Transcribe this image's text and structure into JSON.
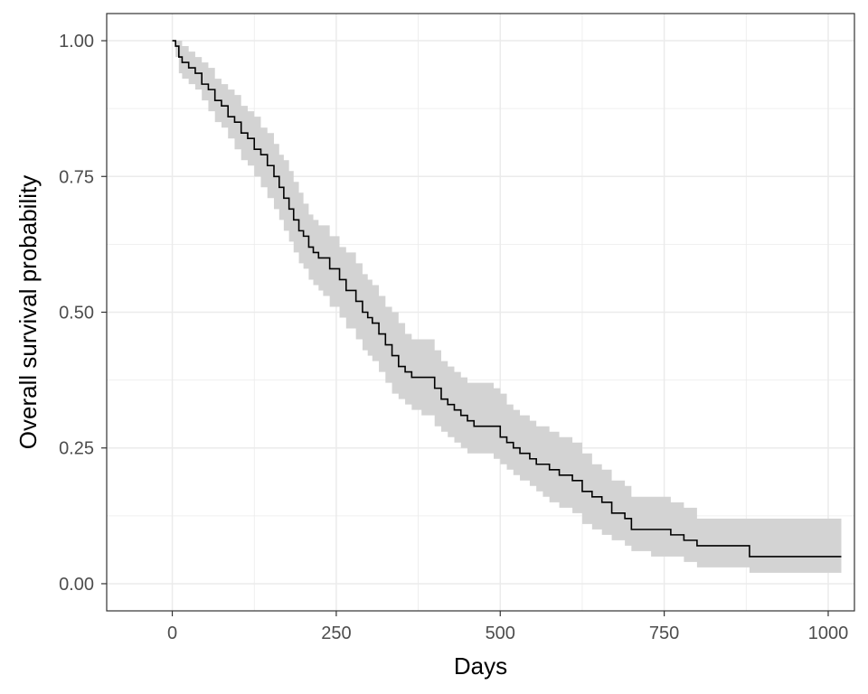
{
  "chart_data": {
    "type": "line",
    "subtype": "kaplan-meier step curve with confidence band",
    "title": "",
    "xlabel": "Days",
    "ylabel": "Overall survival probability",
    "xlim": [
      -100,
      1040
    ],
    "ylim": [
      -0.05,
      1.05
    ],
    "xticks": [
      0,
      250,
      500,
      750,
      1000
    ],
    "xtick_labels": [
      "0",
      "250",
      "500",
      "750",
      "1000"
    ],
    "yticks": [
      0,
      0.25,
      0.5,
      0.75,
      1
    ],
    "ytick_labels": [
      "0.00",
      "0.25",
      "0.50",
      "0.75",
      "1.00"
    ],
    "grid": true,
    "legend": "none",
    "colors": {
      "line": "#000000",
      "band": "#d3d3d3",
      "grid": "#ebebeb",
      "panel_border": "#333333"
    },
    "series": [
      {
        "x": [
          0,
          5,
          10,
          15,
          25,
          35,
          45,
          55,
          65,
          75,
          85,
          95,
          105,
          115,
          125,
          135,
          145,
          155,
          163,
          170,
          178,
          185,
          193,
          200,
          208,
          215,
          223,
          230,
          240,
          255,
          265,
          280,
          290,
          298,
          305,
          315,
          325,
          335,
          345,
          355,
          365,
          380,
          390,
          400,
          410,
          420,
          430,
          440,
          450,
          460,
          470,
          480,
          490,
          500,
          510,
          520,
          530,
          545,
          555,
          565,
          575,
          590,
          610,
          625,
          640,
          655,
          670,
          690,
          700,
          730,
          760,
          780,
          800,
          850,
          880,
          1020
        ],
        "y": [
          1.0,
          0.99,
          0.97,
          0.96,
          0.95,
          0.94,
          0.92,
          0.91,
          0.89,
          0.88,
          0.86,
          0.85,
          0.83,
          0.82,
          0.8,
          0.79,
          0.77,
          0.75,
          0.73,
          0.71,
          0.69,
          0.67,
          0.65,
          0.64,
          0.62,
          0.61,
          0.6,
          0.6,
          0.58,
          0.56,
          0.54,
          0.52,
          0.5,
          0.49,
          0.48,
          0.46,
          0.44,
          0.42,
          0.4,
          0.39,
          0.38,
          0.38,
          0.38,
          0.36,
          0.34,
          0.33,
          0.32,
          0.31,
          0.3,
          0.29,
          0.29,
          0.29,
          0.29,
          0.27,
          0.26,
          0.25,
          0.24,
          0.23,
          0.22,
          0.22,
          0.21,
          0.2,
          0.19,
          0.17,
          0.16,
          0.15,
          0.13,
          0.12,
          0.1,
          0.1,
          0.09,
          0.08,
          0.07,
          0.07,
          0.05,
          0.05
        ],
        "lower": [
          1.0,
          0.97,
          0.94,
          0.93,
          0.92,
          0.91,
          0.89,
          0.87,
          0.85,
          0.84,
          0.82,
          0.8,
          0.78,
          0.77,
          0.75,
          0.73,
          0.71,
          0.69,
          0.67,
          0.65,
          0.63,
          0.61,
          0.59,
          0.58,
          0.56,
          0.55,
          0.54,
          0.53,
          0.51,
          0.49,
          0.47,
          0.45,
          0.43,
          0.42,
          0.41,
          0.39,
          0.37,
          0.35,
          0.34,
          0.33,
          0.32,
          0.31,
          0.31,
          0.29,
          0.28,
          0.27,
          0.26,
          0.25,
          0.24,
          0.24,
          0.24,
          0.24,
          0.23,
          0.22,
          0.21,
          0.2,
          0.19,
          0.18,
          0.17,
          0.16,
          0.15,
          0.14,
          0.13,
          0.11,
          0.1,
          0.09,
          0.08,
          0.07,
          0.06,
          0.05,
          0.05,
          0.04,
          0.03,
          0.03,
          0.02,
          0.02
        ],
        "upper": [
          1.0,
          1.0,
          1.0,
          0.99,
          0.98,
          0.97,
          0.96,
          0.95,
          0.93,
          0.92,
          0.91,
          0.9,
          0.88,
          0.87,
          0.86,
          0.84,
          0.83,
          0.81,
          0.79,
          0.78,
          0.76,
          0.74,
          0.72,
          0.7,
          0.68,
          0.67,
          0.66,
          0.66,
          0.64,
          0.62,
          0.61,
          0.59,
          0.57,
          0.56,
          0.55,
          0.53,
          0.51,
          0.5,
          0.48,
          0.46,
          0.45,
          0.45,
          0.45,
          0.43,
          0.41,
          0.4,
          0.39,
          0.38,
          0.37,
          0.37,
          0.37,
          0.37,
          0.36,
          0.35,
          0.33,
          0.32,
          0.31,
          0.3,
          0.29,
          0.29,
          0.28,
          0.27,
          0.26,
          0.24,
          0.22,
          0.21,
          0.19,
          0.18,
          0.16,
          0.16,
          0.15,
          0.14,
          0.12,
          0.12,
          0.12,
          0.12
        ]
      }
    ]
  }
}
